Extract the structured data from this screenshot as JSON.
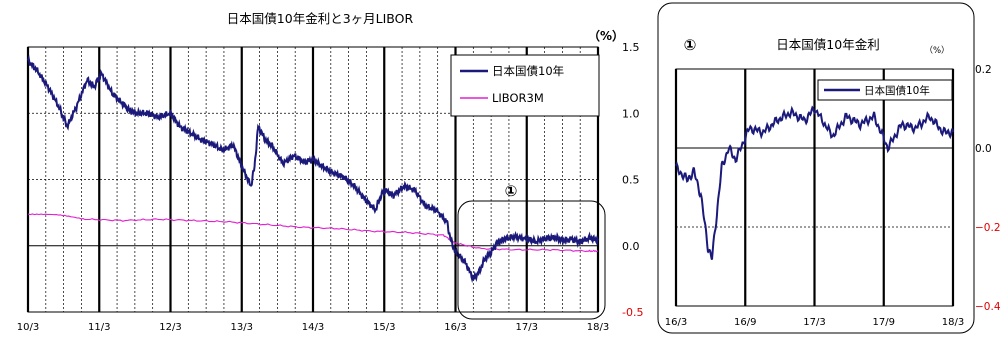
{
  "chart_data": [
    {
      "type": "line",
      "title": "日本国債10年金利と3ヶ月LIBOR",
      "unit_label": "（%）",
      "xlabel": "",
      "ylabel": "",
      "ylim": [
        -0.5,
        1.5
      ],
      "x_tick_labels": [
        "10/3",
        "11/3",
        "12/3",
        "13/3",
        "14/3",
        "15/3",
        "16/3",
        "17/3",
        "18/3"
      ],
      "y_ticks": [
        1.5,
        1.0,
        0.5,
        0.0,
        -0.5
      ],
      "y_tick_labels": [
        "1.5",
        "1.0",
        "0.5",
        "0.0",
        "-0.5"
      ],
      "grid": true,
      "legend": "top-right",
      "annotation": "①",
      "series": [
        {
          "name": "日本国債10年",
          "color": "#1b1a7a",
          "x": [
            2010.17,
            2010.3,
            2010.45,
            2010.6,
            2010.72,
            2010.85,
            2011.0,
            2011.1,
            2011.2,
            2011.35,
            2011.5,
            2011.6,
            2011.7,
            2011.85,
            2012.0,
            2012.17,
            2012.3,
            2012.45,
            2012.6,
            2012.75,
            2012.9,
            2013.05,
            2013.17,
            2013.3,
            2013.35,
            2013.4,
            2013.45,
            2013.5,
            2013.6,
            2013.75,
            2013.9,
            2014.05,
            2014.17,
            2014.3,
            2014.45,
            2014.6,
            2014.75,
            2014.9,
            2015.05,
            2015.1,
            2015.17,
            2015.3,
            2015.45,
            2015.6,
            2015.75,
            2015.9,
            2016.05,
            2016.1,
            2016.17,
            2016.3,
            2016.42,
            2016.5,
            2016.58,
            2016.67,
            2016.75,
            2016.85,
            2017.0,
            2017.17,
            2017.3,
            2017.45,
            2017.58,
            2017.67,
            2017.8,
            2017.92,
            2018.05,
            2018.17
          ],
          "values": [
            1.4,
            1.32,
            1.2,
            1.05,
            0.9,
            1.05,
            1.25,
            1.2,
            1.3,
            1.15,
            1.07,
            1.02,
            1.0,
            1.0,
            0.97,
            1.0,
            0.9,
            0.85,
            0.8,
            0.77,
            0.72,
            0.76,
            0.6,
            0.45,
            0.6,
            0.9,
            0.85,
            0.8,
            0.75,
            0.62,
            0.68,
            0.63,
            0.65,
            0.6,
            0.55,
            0.52,
            0.45,
            0.35,
            0.27,
            0.35,
            0.42,
            0.38,
            0.45,
            0.42,
            0.3,
            0.27,
            0.18,
            0.05,
            -0.05,
            -0.12,
            -0.25,
            -0.2,
            -0.1,
            -0.05,
            0.02,
            0.05,
            0.07,
            0.05,
            0.03,
            0.06,
            0.06,
            0.04,
            0.05,
            0.03,
            0.06,
            0.04
          ]
        },
        {
          "name": "LIBOR3M",
          "color": "#e020d0",
          "x": [
            2010.17,
            2010.6,
            2011.0,
            2011.5,
            2012.0,
            2012.5,
            2013.0,
            2013.5,
            2014.0,
            2014.5,
            2015.0,
            2015.5,
            2016.0,
            2016.17,
            2016.5,
            2017.0,
            2017.5,
            2018.0,
            2018.17
          ],
          "values": [
            0.24,
            0.23,
            0.2,
            0.19,
            0.2,
            0.19,
            0.18,
            0.16,
            0.14,
            0.13,
            0.11,
            0.1,
            0.08,
            0.02,
            -0.02,
            -0.03,
            -0.03,
            -0.04,
            -0.04
          ]
        }
      ]
    },
    {
      "type": "line",
      "title": "日本国債10年金利",
      "annotation": "①",
      "unit_label": "（%）",
      "xlabel": "",
      "ylabel": "",
      "ylim": [
        -0.4,
        0.2
      ],
      "x_tick_labels": [
        "16/3",
        "16/9",
        "17/3",
        "17/9",
        "18/3"
      ],
      "y_ticks": [
        0.2,
        0.0,
        -0.2,
        -0.4
      ],
      "y_tick_labels": [
        "0.2",
        "0.0",
        "−0.2",
        "−0.4"
      ],
      "grid": true,
      "legend": "top-right",
      "series": [
        {
          "name": "日本国債10年",
          "color": "#1b1a7a",
          "x": [
            2016.17,
            2016.25,
            2016.3,
            2016.35,
            2016.4,
            2016.43,
            2016.5,
            2016.55,
            2016.6,
            2016.7,
            2016.8,
            2016.9,
            2017.0,
            2017.1,
            2017.17,
            2017.3,
            2017.4,
            2017.5,
            2017.6,
            2017.7,
            2017.8,
            2017.9,
            2018.0,
            2018.1,
            2018.17
          ],
          "values": [
            -0.05,
            -0.08,
            -0.06,
            -0.12,
            -0.25,
            -0.28,
            -0.05,
            0.0,
            -0.03,
            0.05,
            0.04,
            0.07,
            0.09,
            0.07,
            0.1,
            0.03,
            0.08,
            0.06,
            0.08,
            0.0,
            0.06,
            0.05,
            0.08,
            0.04,
            0.04
          ]
        }
      ]
    }
  ]
}
